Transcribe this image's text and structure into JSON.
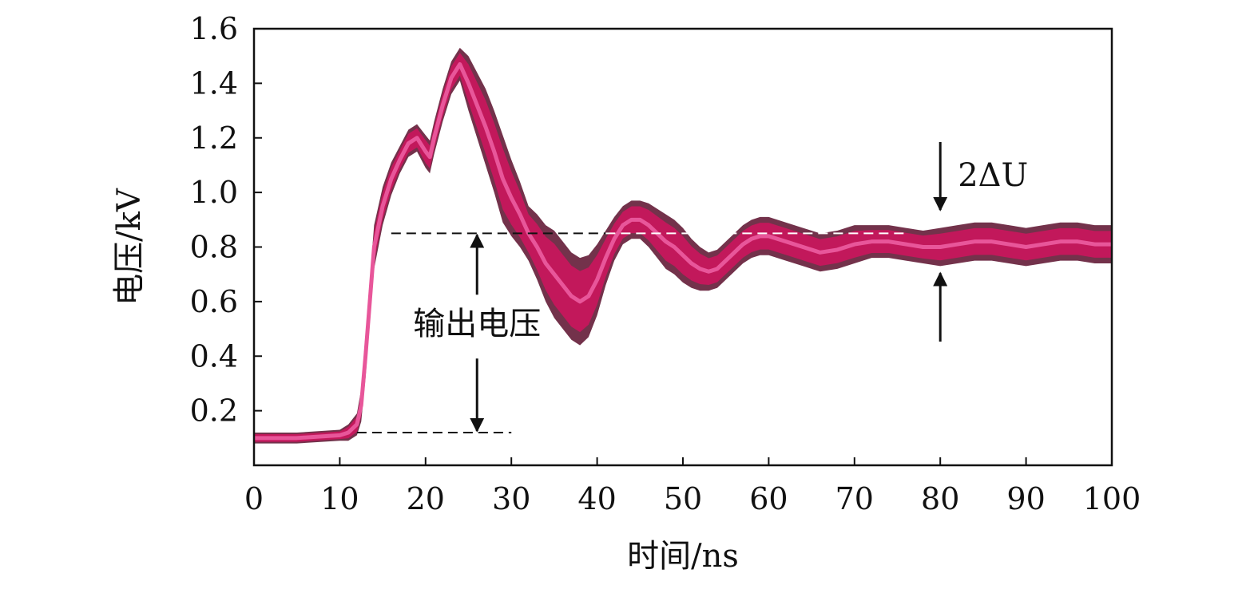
{
  "chart_data": {
    "type": "line",
    "title": "",
    "xlabel": "时间/ns",
    "ylabel": "电压/kV",
    "xlim": [
      0,
      100
    ],
    "ylim": [
      0,
      1.6
    ],
    "x_ticks": [
      "0",
      "10",
      "20",
      "30",
      "40",
      "50",
      "60",
      "70",
      "80",
      "90",
      "100"
    ],
    "y_ticks": [
      "0.2",
      "0.4",
      "0.6",
      "0.8",
      "1.0",
      "1.2",
      "1.4",
      "1.6"
    ],
    "grid": false,
    "trace_color": "#c2185b",
    "trace_core_color": "#e8569a",
    "trace_edge_color": "#5a0e2c",
    "series": [
      {
        "x": [
          0,
          5,
          10,
          11,
          12,
          12.5,
          13,
          13.5,
          14,
          15,
          16,
          17,
          18,
          19,
          20,
          20.5,
          21,
          22,
          23,
          24,
          25,
          26,
          27,
          28,
          29,
          30,
          31,
          32,
          33,
          34,
          35,
          36,
          37,
          38,
          39,
          40,
          41,
          42,
          43,
          44,
          45,
          46,
          47,
          48,
          49,
          50,
          51,
          52,
          53,
          54,
          55,
          56,
          57,
          58,
          59,
          60,
          62,
          64,
          66,
          68,
          70,
          72,
          74,
          76,
          78,
          80,
          82,
          84,
          86,
          88,
          90,
          92,
          94,
          96,
          98,
          100
        ],
        "y": [
          0.1,
          0.1,
          0.11,
          0.12,
          0.15,
          0.22,
          0.4,
          0.6,
          0.8,
          0.95,
          1.05,
          1.12,
          1.18,
          1.2,
          1.15,
          1.13,
          1.2,
          1.32,
          1.42,
          1.47,
          1.4,
          1.32,
          1.24,
          1.15,
          1.05,
          0.98,
          0.92,
          0.85,
          0.8,
          0.74,
          0.7,
          0.66,
          0.62,
          0.6,
          0.62,
          0.68,
          0.76,
          0.83,
          0.88,
          0.9,
          0.9,
          0.88,
          0.85,
          0.82,
          0.8,
          0.77,
          0.74,
          0.72,
          0.71,
          0.72,
          0.75,
          0.78,
          0.81,
          0.83,
          0.84,
          0.84,
          0.82,
          0.8,
          0.78,
          0.79,
          0.81,
          0.82,
          0.82,
          0.81,
          0.8,
          0.8,
          0.81,
          0.82,
          0.82,
          0.81,
          0.8,
          0.81,
          0.82,
          0.82,
          0.81,
          0.81
        ],
        "spread": [
          0.02,
          0.02,
          0.02,
          0.03,
          0.04,
          0.06,
          0.08,
          0.08,
          0.08,
          0.07,
          0.06,
          0.05,
          0.05,
          0.05,
          0.06,
          0.06,
          0.06,
          0.06,
          0.06,
          0.06,
          0.1,
          0.12,
          0.14,
          0.15,
          0.16,
          0.14,
          0.12,
          0.1,
          0.12,
          0.14,
          0.16,
          0.16,
          0.16,
          0.16,
          0.15,
          0.13,
          0.1,
          0.08,
          0.07,
          0.07,
          0.07,
          0.08,
          0.09,
          0.1,
          0.1,
          0.1,
          0.09,
          0.08,
          0.07,
          0.07,
          0.07,
          0.07,
          0.07,
          0.07,
          0.07,
          0.07,
          0.07,
          0.07,
          0.07,
          0.07,
          0.07,
          0.06,
          0.06,
          0.06,
          0.06,
          0.07,
          0.07,
          0.07,
          0.07,
          0.07,
          0.07,
          0.07,
          0.07,
          0.07,
          0.07,
          0.07
        ]
      }
    ],
    "annotations": {
      "output_voltage_label": "输出电压",
      "output_voltage_low": 0.12,
      "output_voltage_high": 0.85,
      "output_voltage_x": 26,
      "ripple_label": "2ΔU",
      "ripple_x": 80,
      "ripple_high": 0.93,
      "ripple_low": 0.71
    }
  }
}
